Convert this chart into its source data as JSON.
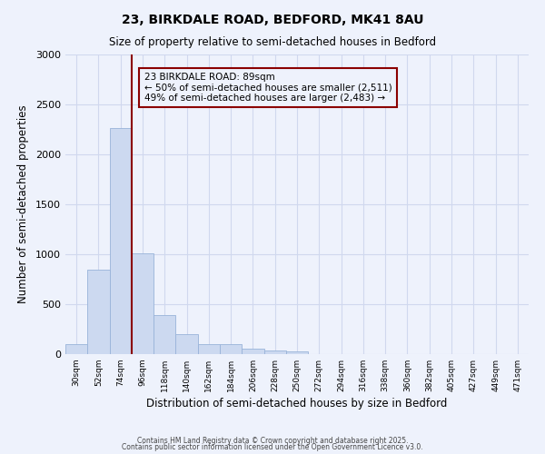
{
  "title": "23, BIRKDALE ROAD, BEDFORD, MK41 8AU",
  "subtitle": "Size of property relative to semi-detached houses in Bedford",
  "xlabel": "Distribution of semi-detached houses by size in Bedford",
  "ylabel": "Number of semi-detached properties",
  "bar_labels": [
    "30sqm",
    "52sqm",
    "74sqm",
    "96sqm",
    "118sqm",
    "140sqm",
    "162sqm",
    "184sqm",
    "206sqm",
    "228sqm",
    "250sqm",
    "272sqm",
    "294sqm",
    "316sqm",
    "338sqm",
    "360sqm",
    "382sqm",
    "405sqm",
    "427sqm",
    "449sqm",
    "471sqm"
  ],
  "bar_values": [
    100,
    850,
    2260,
    1010,
    390,
    200,
    100,
    100,
    55,
    35,
    25,
    0,
    0,
    0,
    0,
    0,
    0,
    0,
    0,
    0,
    0
  ],
  "bar_color": "#ccd9f0",
  "bar_edge_color": "#99b3d9",
  "background_color": "#eef2fc",
  "grid_color": "#d0d8ee",
  "vline_color": "#8b0000",
  "annotation_title": "23 BIRKDALE ROAD: 89sqm",
  "annotation_line1": "← 50% of semi-detached houses are smaller (2,511)",
  "annotation_line2": "49% of semi-detached houses are larger (2,483) →",
  "annotation_box_color": "#8b0000",
  "ylim": [
    0,
    3000
  ],
  "yticks": [
    0,
    500,
    1000,
    1500,
    2000,
    2500,
    3000
  ],
  "footer1": "Contains HM Land Registry data © Crown copyright and database right 2025.",
  "footer2": "Contains public sector information licensed under the Open Government Licence v3.0."
}
